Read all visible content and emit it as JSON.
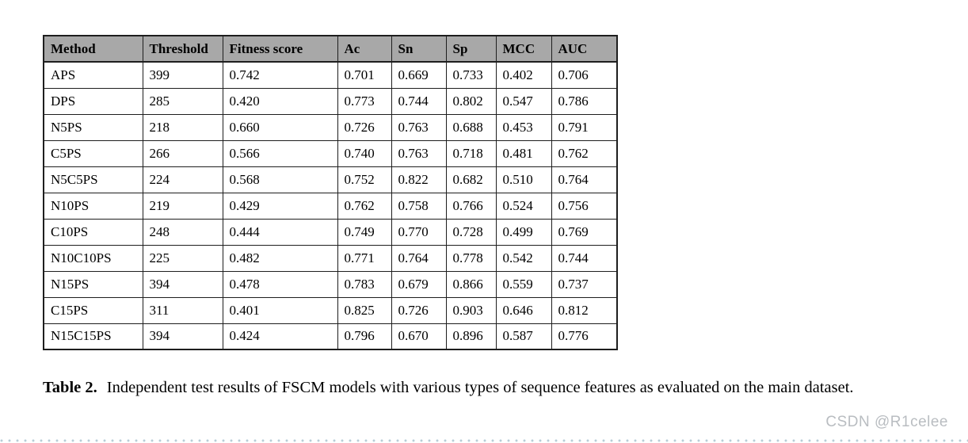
{
  "table": {
    "columns": [
      "Method",
      "Threshold",
      "Fitness score",
      "Ac",
      "Sn",
      "Sp",
      "MCC",
      "AUC"
    ],
    "rows": [
      [
        "APS",
        "399",
        "0.742",
        "0.701",
        "0.669",
        "0.733",
        "0.402",
        "0.706"
      ],
      [
        "DPS",
        "285",
        "0.420",
        "0.773",
        "0.744",
        "0.802",
        "0.547",
        "0.786"
      ],
      [
        "N5PS",
        "218",
        "0.660",
        "0.726",
        "0.763",
        "0.688",
        "0.453",
        "0.791"
      ],
      [
        "C5PS",
        "266",
        "0.566",
        "0.740",
        "0.763",
        "0.718",
        "0.481",
        "0.762"
      ],
      [
        "N5C5PS",
        "224",
        "0.568",
        "0.752",
        "0.822",
        "0.682",
        "0.510",
        "0.764"
      ],
      [
        "N10PS",
        "219",
        "0.429",
        "0.762",
        "0.758",
        "0.766",
        "0.524",
        "0.756"
      ],
      [
        "C10PS",
        "248",
        "0.444",
        "0.749",
        "0.770",
        "0.728",
        "0.499",
        "0.769"
      ],
      [
        "N10C10PS",
        "225",
        "0.482",
        "0.771",
        "0.764",
        "0.778",
        "0.542",
        "0.744"
      ],
      [
        "N15PS",
        "394",
        "0.478",
        "0.783",
        "0.679",
        "0.866",
        "0.559",
        "0.737"
      ],
      [
        "C15PS",
        "311",
        "0.401",
        "0.825",
        "0.726",
        "0.903",
        "0.646",
        "0.812"
      ],
      [
        "N15C15PS",
        "394",
        "0.424",
        "0.796",
        "0.670",
        "0.896",
        "0.587",
        "0.776"
      ]
    ],
    "header_bg": "#a8a8a8",
    "border_color": "#1e1e1e"
  },
  "caption": {
    "label": "Table 2.",
    "text": "Independent test results of FSCM models with various types of sequence features as evaluated on the main dataset."
  },
  "watermark": {
    "text": "CSDN @R1celee",
    "color": "#b9bdc1"
  },
  "divider": {
    "dot_color": "#b7cdd6"
  }
}
